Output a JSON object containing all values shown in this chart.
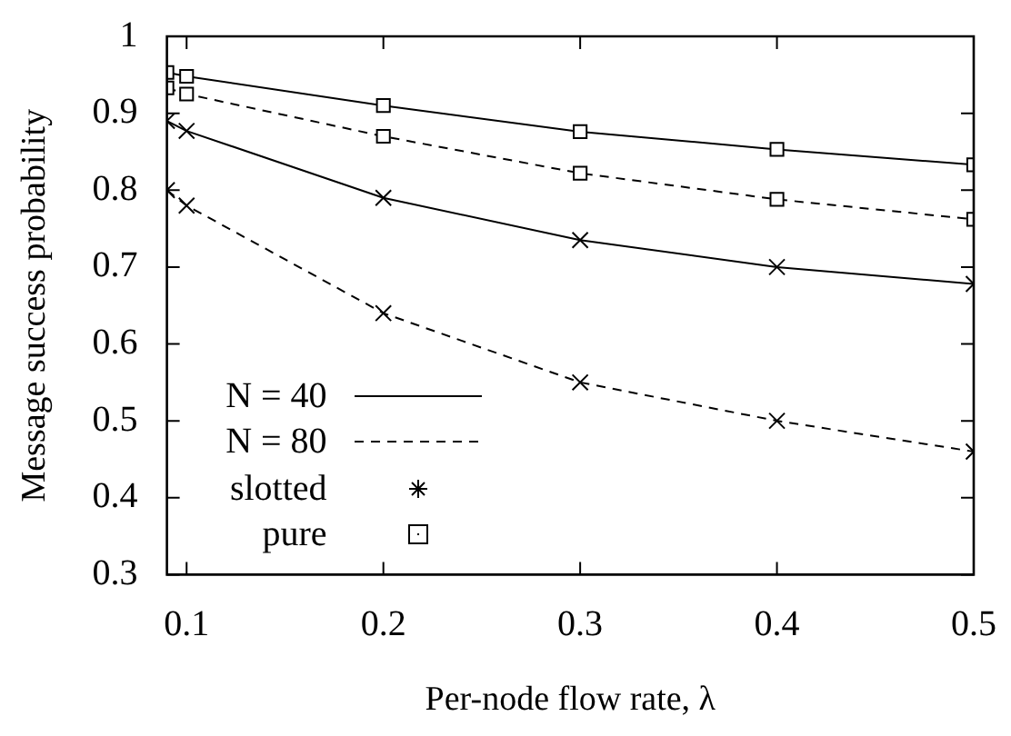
{
  "chart_data": {
    "type": "line",
    "xlabel": "Per-node flow rate, λ",
    "ylabel": "Message success probability",
    "x": [
      0.09,
      0.1,
      0.2,
      0.3,
      0.4,
      0.5
    ],
    "series": [
      {
        "color": "#000000",
        "line_style": "solid",
        "marker": "cross",
        "values": [
          0.89,
          0.877,
          0.79,
          0.735,
          0.7,
          0.678
        ]
      },
      {
        "color": "#000000",
        "line_style": "dashed",
        "marker": "cross",
        "values": [
          0.8,
          0.78,
          0.64,
          0.55,
          0.5,
          0.46
        ]
      },
      {
        "color": "#000000",
        "line_style": "solid",
        "marker": "square",
        "values": [
          0.953,
          0.948,
          0.91,
          0.876,
          0.853,
          0.833
        ]
      },
      {
        "color": "#000000",
        "line_style": "dashed",
        "marker": "square",
        "values": [
          0.933,
          0.925,
          0.87,
          0.822,
          0.788,
          0.762
        ]
      }
    ],
    "annotations": [
      "N = 40",
      "N = 80",
      "slotted",
      "pure"
    ],
    "xlim": [
      0.09,
      0.5
    ],
    "xticks": [
      0.1,
      0.2,
      0.3,
      0.4,
      0.5
    ],
    "ylim": [
      0.3,
      1
    ],
    "yticks": [
      0.3,
      0.4,
      0.5,
      0.6,
      0.7,
      0.8,
      0.9,
      1
    ],
    "grid": false
  }
}
